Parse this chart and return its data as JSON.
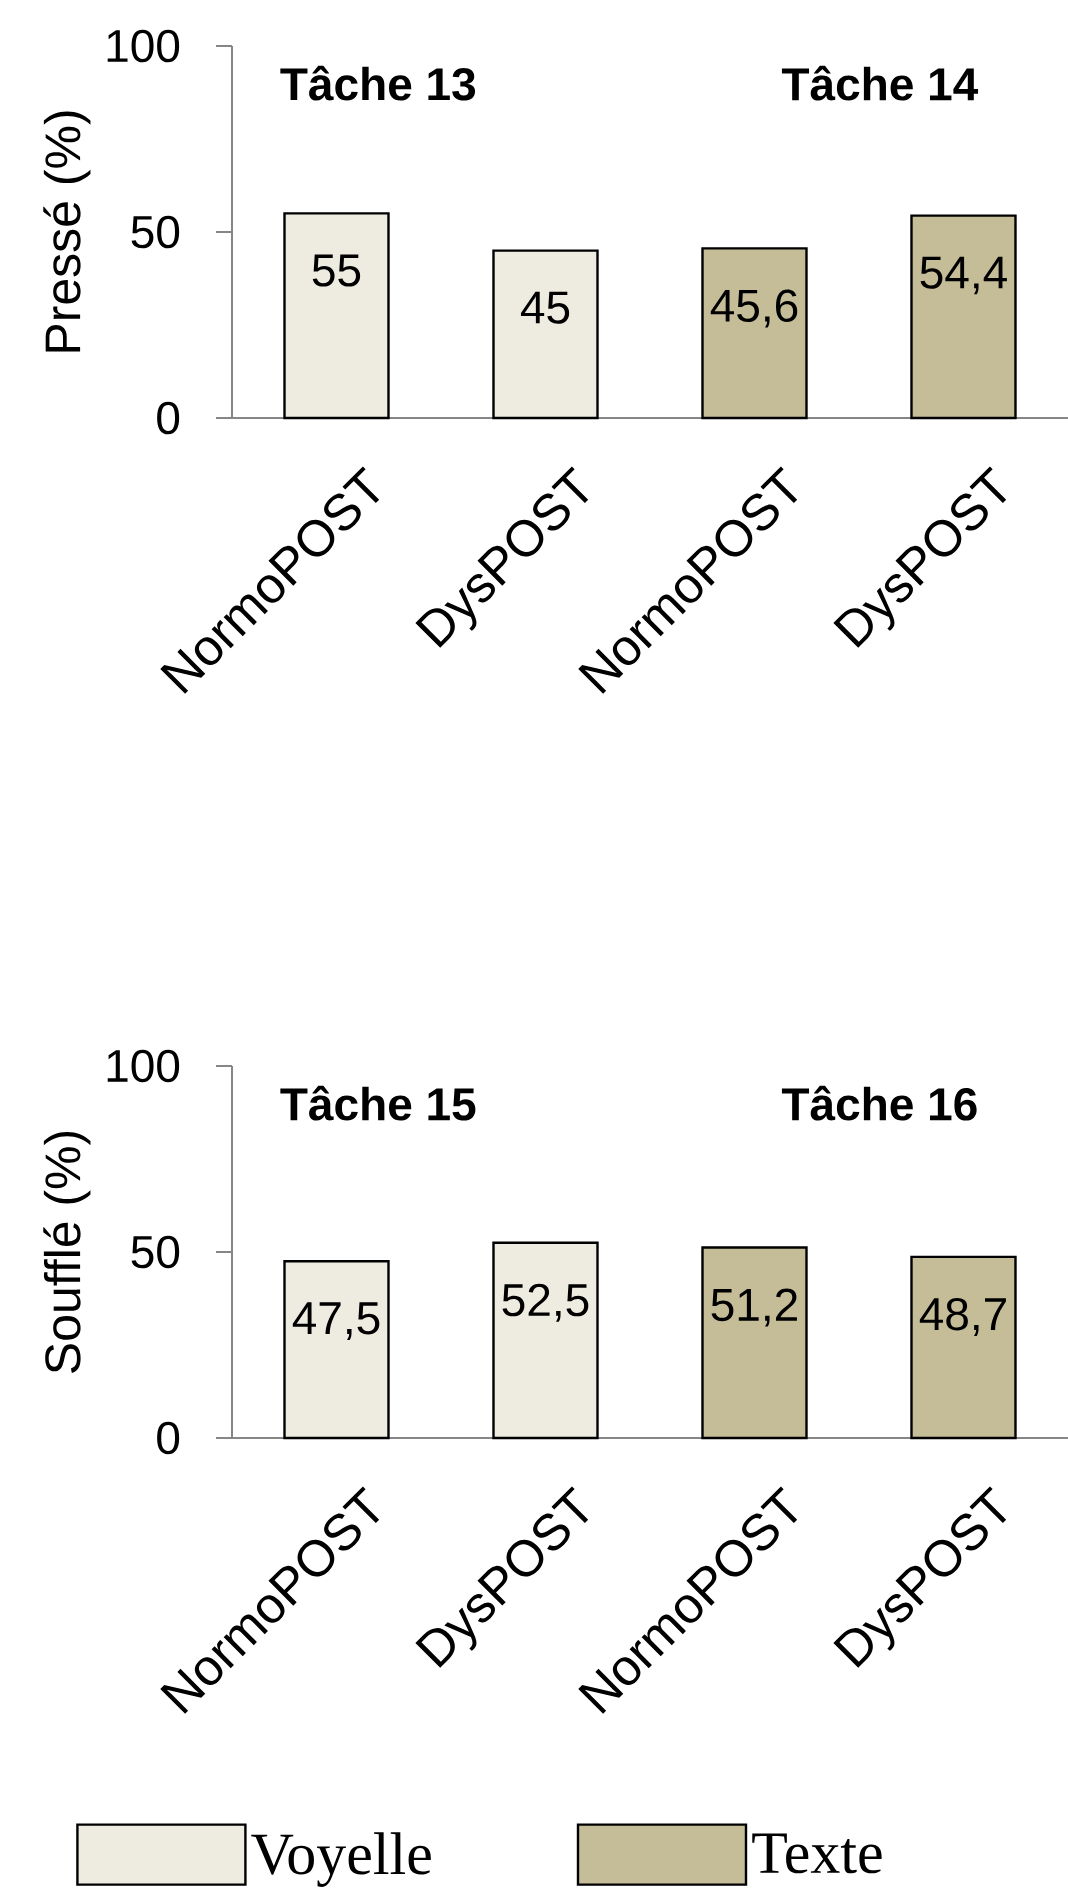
{
  "chart_data": [
    {
      "type": "bar",
      "ylabel": "Pressé (%)",
      "categories": [
        "NormoPOST",
        "DysPOST",
        "NormoPOST",
        "DysPOST"
      ],
      "series": [
        {
          "color": "#eeece1",
          "values": [
            55,
            45,
            null,
            null
          ],
          "value_labels": [
            "55",
            "45",
            null,
            null
          ]
        },
        {
          "color": "#c4bd97",
          "values": [
            null,
            null,
            45.6,
            54.4
          ],
          "value_labels": [
            null,
            null,
            "45,6",
            "54,4"
          ]
        }
      ],
      "ylim": [
        0,
        100
      ],
      "yticks": [
        0,
        50,
        100
      ],
      "annotations": [
        "Tâche 13",
        "Tâche 14"
      ]
    },
    {
      "type": "bar",
      "ylabel": "Soufflé (%)",
      "categories": [
        "NormoPOST",
        "DysPOST",
        "NormoPOST",
        "DysPOST"
      ],
      "series": [
        {
          "name": "Voyelle",
          "color": "#eeece1",
          "values": [
            47.5,
            52.5,
            null,
            null
          ],
          "value_labels": [
            "47,5",
            "52,5",
            null,
            null
          ]
        },
        {
          "name": "Texte",
          "color": "#c4bd97",
          "values": [
            null,
            null,
            51.2,
            48.7
          ],
          "value_labels": [
            null,
            null,
            "51,2",
            "48,7"
          ]
        }
      ],
      "ylim": [
        0,
        100
      ],
      "yticks": [
        0,
        50,
        100
      ],
      "annotations": [
        "Tâche 15",
        "Tâche 16"
      ],
      "legend": "bottom"
    }
  ]
}
